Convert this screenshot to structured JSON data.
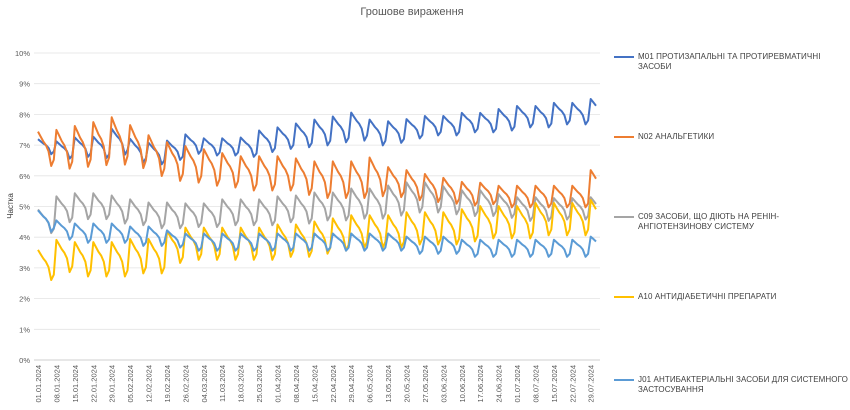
{
  "chart_data": {
    "type": "line",
    "title": "Грошове вираження",
    "ylabel": "Частка",
    "xlabel": "",
    "ylim": [
      0,
      10
    ],
    "y_ticks": [
      "0%",
      "1%",
      "2%",
      "3%",
      "4%",
      "5%",
      "6%",
      "7%",
      "8%",
      "9%",
      "10%"
    ],
    "x_tick_labels": [
      "01.01.2024",
      "08.01.2024",
      "15.01.2024",
      "22.01.2024",
      "29.01.2024",
      "05.02.2024",
      "12.02.2024",
      "19.02.2024",
      "26.02.2024",
      "04.03.2024",
      "11.03.2024",
      "18.03.2024",
      "25.03.2024",
      "01.04.2024",
      "08.04.2024",
      "15.04.2024",
      "22.04.2024",
      "29.04.2024",
      "06.05.2024",
      "13.05.2024",
      "20.05.2024",
      "27.05.2024",
      "03.06.2024",
      "10.06.2024",
      "17.06.2024",
      "24.06.2024",
      "01.07.2024",
      "08.07.2024",
      "15.07.2024",
      "22.07.2024",
      "29.07.2024"
    ],
    "x_start": "01.01.2024",
    "x_end": "31.07.2024",
    "grid": true,
    "legend": "right",
    "series": [
      {
        "name": "M01 ПРОТИЗАПАЛЬНІ ТА ПРОТИРЕВМАТИЧНІ ЗАСОБИ",
        "color": "#4472C4",
        "weekly": [
          7.0,
          6.9,
          7.0,
          7.0,
          7.2,
          6.9,
          6.8,
          6.9,
          7.1,
          7.0,
          7.0,
          7.0,
          7.2,
          7.3,
          7.4,
          7.5,
          7.6,
          7.7,
          7.5,
          7.5,
          7.6,
          7.7,
          7.7,
          7.8,
          7.8,
          7.9,
          8.0,
          8.0,
          8.1,
          8.1,
          8.2
        ],
        "amplitude": [
          0.35,
          0.4,
          0.45,
          0.5,
          0.6,
          0.55,
          0.5,
          0.45,
          0.45,
          0.4,
          0.4,
          0.45,
          0.5,
          0.5,
          0.55,
          0.6,
          0.6,
          0.65,
          0.6,
          0.5,
          0.45,
          0.45,
          0.45,
          0.45,
          0.45,
          0.5,
          0.5,
          0.5,
          0.5,
          0.5,
          0.55
        ]
      },
      {
        "name": "N02 АНАЛЬГЕТИКИ",
        "color": "#ED7D31",
        "weekly": [
          7.0,
          7.0,
          7.1,
          7.2,
          7.3,
          7.1,
          6.8,
          6.6,
          6.5,
          6.4,
          6.3,
          6.2,
          6.2,
          6.2,
          6.1,
          6.0,
          6.0,
          6.0,
          6.1,
          5.9,
          5.8,
          5.7,
          5.6,
          5.5,
          5.5,
          5.4,
          5.4,
          5.4,
          5.4,
          5.4,
          5.8
        ],
        "amplitude": [
          0.8,
          0.9,
          0.95,
          1.0,
          1.1,
          1.0,
          0.95,
          0.9,
          0.85,
          0.85,
          0.8,
          0.8,
          0.8,
          0.8,
          0.85,
          0.85,
          0.85,
          0.85,
          0.9,
          0.7,
          0.7,
          0.65,
          0.6,
          0.55,
          0.5,
          0.5,
          0.5,
          0.5,
          0.5,
          0.5,
          0.7
        ]
      },
      {
        "name": "C09 ЗАСОБИ, ЩО ДІЮТЬ НА РЕНІН-АНГІОТЕНЗИНОВУ СИСТЕМУ",
        "color": "#A5A5A5",
        "weekly": [
          4.6,
          5.0,
          5.1,
          5.1,
          5.0,
          4.9,
          4.8,
          4.8,
          4.8,
          4.8,
          4.9,
          4.9,
          4.9,
          5.0,
          5.0,
          5.1,
          5.1,
          5.2,
          5.2,
          5.3,
          5.4,
          5.4,
          5.3,
          5.2,
          5.2,
          5.1,
          5.0,
          5.0,
          5.0,
          5.0,
          5.0
        ],
        "amplitude": [
          0.55,
          0.6,
          0.6,
          0.6,
          0.65,
          0.6,
          0.6,
          0.6,
          0.55,
          0.55,
          0.6,
          0.6,
          0.6,
          0.6,
          0.65,
          0.65,
          0.65,
          0.7,
          0.7,
          0.7,
          0.7,
          0.7,
          0.65,
          0.6,
          0.6,
          0.55,
          0.55,
          0.55,
          0.5,
          0.5,
          0.55
        ]
      },
      {
        "name": "A10 АНТИДІАБЕТИЧНІ ПРЕПАРАТИ",
        "color": "#FFC000",
        "weekly": [
          3.2,
          3.5,
          3.4,
          3.4,
          3.4,
          3.5,
          3.5,
          3.8,
          3.9,
          3.9,
          3.9,
          3.9,
          3.9,
          4.0,
          4.0,
          4.1,
          4.2,
          4.3,
          4.3,
          4.3,
          4.4,
          4.4,
          4.4,
          4.5,
          4.6,
          4.6,
          4.6,
          4.7,
          4.7,
          4.7,
          4.8
        ],
        "amplitude": [
          0.7,
          0.75,
          0.8,
          0.8,
          0.8,
          0.8,
          0.8,
          0.75,
          0.75,
          0.75,
          0.75,
          0.75,
          0.75,
          0.75,
          0.75,
          0.75,
          0.75,
          0.75,
          0.75,
          0.75,
          0.75,
          0.75,
          0.75,
          0.75,
          0.75,
          0.75,
          0.75,
          0.75,
          0.75,
          0.75,
          0.75
        ]
      },
      {
        "name": "J01 АНТИБАКТЕРІАЛЬНІ ЗАСОБИ ДЛЯ СИСТЕМНОГО ЗАСТОСУВАННЯ",
        "color": "#5B9BD5",
        "weekly": [
          4.6,
          4.3,
          4.2,
          4.2,
          4.2,
          4.1,
          4.1,
          4.0,
          3.9,
          3.9,
          3.9,
          3.9,
          3.9,
          3.9,
          3.9,
          3.9,
          3.9,
          3.9,
          3.9,
          3.9,
          3.8,
          3.8,
          3.8,
          3.7,
          3.7,
          3.7,
          3.7,
          3.7,
          3.7,
          3.7,
          3.8
        ],
        "amplitude": [
          0.5,
          0.45,
          0.45,
          0.45,
          0.45,
          0.45,
          0.45,
          0.4,
          0.4,
          0.4,
          0.4,
          0.4,
          0.4,
          0.4,
          0.4,
          0.4,
          0.4,
          0.4,
          0.4,
          0.4,
          0.4,
          0.4,
          0.4,
          0.4,
          0.4,
          0.4,
          0.4,
          0.4,
          0.4,
          0.4,
          0.4
        ]
      }
    ]
  }
}
